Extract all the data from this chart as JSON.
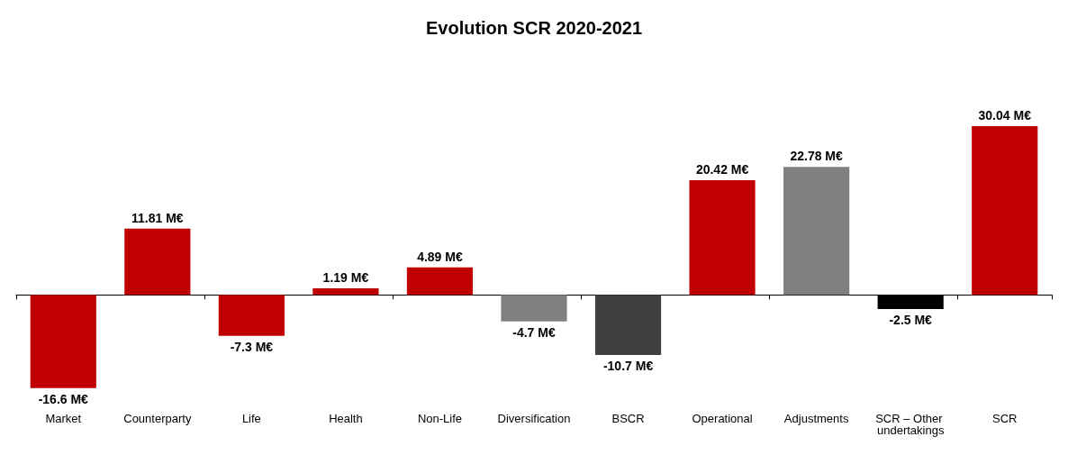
{
  "chart_data": {
    "type": "bar",
    "title": "Evolution SCR 2020-2021",
    "categories": [
      "Market",
      "Counterparty",
      "Life",
      "Health",
      "Non-Life",
      "Diversification",
      "BSCR",
      "Operational",
      "Adjustments",
      "SCR – Other undertakings",
      "SCR"
    ],
    "values": [
      -16.6,
      11.81,
      -7.3,
      1.19,
      4.89,
      -4.7,
      -10.7,
      20.42,
      22.78,
      -2.5,
      30.04
    ],
    "value_labels": [
      "-16.6 M€",
      "11.81 M€",
      "-7.3 M€",
      "1.19 M€",
      "4.89 M€",
      "-4.7 M€",
      "-10.7 M€",
      "20.42 M€",
      "22.78 M€",
      "-2.5 M€",
      "30.04 M€"
    ],
    "colors": [
      "#c00000",
      "#c00000",
      "#c00000",
      "#c00000",
      "#c00000",
      "#808080",
      "#404040",
      "#c00000",
      "#808080",
      "#000000",
      "#c00000"
    ],
    "grid": false
  }
}
